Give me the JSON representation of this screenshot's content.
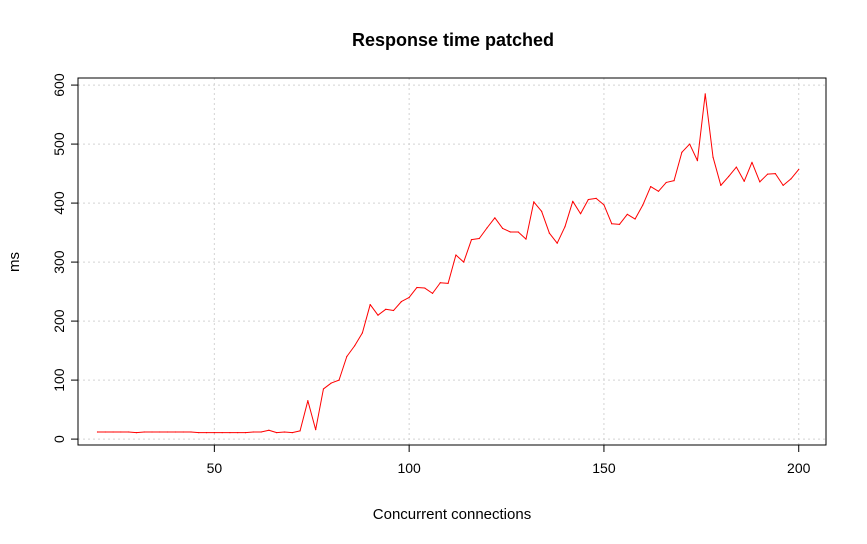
{
  "chart_data": {
    "type": "line",
    "title": "Response time patched",
    "xlabel": "Concurrent connections",
    "ylabel": "ms",
    "xlim": [
      15,
      207
    ],
    "ylim": [
      -10,
      612
    ],
    "xticks": [
      50,
      100,
      150,
      200
    ],
    "yticks": [
      0,
      100,
      200,
      300,
      400,
      500,
      600
    ],
    "grid": true,
    "series": [
      {
        "color": "#ff0000",
        "x": [
          20,
          22,
          24,
          26,
          28,
          30,
          32,
          34,
          36,
          38,
          40,
          42,
          44,
          46,
          48,
          50,
          52,
          54,
          56,
          58,
          60,
          62,
          64,
          66,
          68,
          70,
          72,
          74,
          76,
          78,
          80,
          82,
          84,
          86,
          88,
          90,
          92,
          94,
          96,
          98,
          100,
          102,
          104,
          106,
          108,
          110,
          112,
          114,
          116,
          118,
          120,
          122,
          124,
          126,
          128,
          130,
          132,
          134,
          136,
          138,
          140,
          142,
          144,
          146,
          148,
          150,
          152,
          154,
          156,
          158,
          160,
          162,
          164,
          166,
          168,
          170,
          172,
          174,
          176,
          178,
          180,
          182,
          184,
          186,
          188,
          190,
          192,
          194,
          196,
          198,
          200
        ],
        "y": [
          12,
          12,
          12,
          12,
          12,
          11,
          12,
          12,
          12,
          12,
          12,
          12,
          12,
          11,
          11,
          11,
          11,
          11,
          11,
          11,
          12,
          12,
          15,
          11,
          12,
          11,
          14,
          65,
          16,
          85,
          95,
          100,
          140,
          158,
          180,
          228,
          210,
          220,
          218,
          233,
          240,
          257,
          256,
          247,
          265,
          264,
          312,
          300,
          338,
          340,
          358,
          375,
          357,
          351,
          351,
          339,
          402,
          386,
          349,
          332,
          360,
          403,
          382,
          406,
          408,
          397,
          365,
          364,
          381,
          373,
          397,
          428,
          420,
          435,
          438,
          486,
          500,
          472,
          585,
          478,
          430,
          445,
          461,
          437,
          469,
          436,
          449,
          450,
          430,
          441,
          457
        ]
      }
    ]
  }
}
